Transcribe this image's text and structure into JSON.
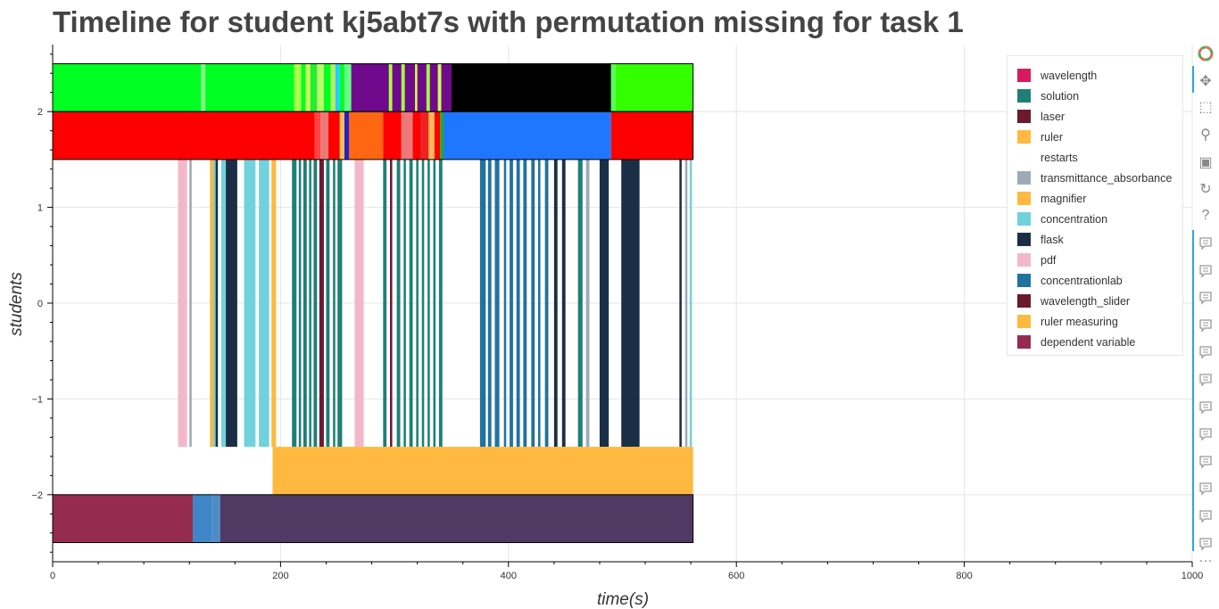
{
  "page": {
    "title": "Timeline for student kj5abt7s with permutation missing for task 1"
  },
  "chart_data": {
    "type": "timeline",
    "title": "Timeline for student kj5abt7s with permutation missing for task 1",
    "xlabel": "time(s)",
    "ylabel": "students",
    "xlim": [
      0,
      1000
    ],
    "ylim": [
      -2.7,
      2.7
    ],
    "xticks": [
      0,
      200,
      400,
      600,
      800,
      1000
    ],
    "yticks": [
      -2,
      -1,
      0,
      1,
      2
    ],
    "ytick_labels": [
      "−2",
      "−1",
      "0",
      "1",
      "2"
    ],
    "grid": true,
    "legend_position": "top-right",
    "legend": [
      {
        "label": "wavelength",
        "color": "#d81b60"
      },
      {
        "label": "solution",
        "color": "#1e7f77"
      },
      {
        "label": "laser",
        "color": "#6b1a30"
      },
      {
        "label": "ruler",
        "color": "#ffb940"
      },
      {
        "label": "restarts",
        "color": "#ffffff"
      },
      {
        "label": "transmittance_absorbance",
        "color": "#9eaab8"
      },
      {
        "label": "magnifier",
        "color": "#ffb940"
      },
      {
        "label": "concentration",
        "color": "#6fd2dc"
      },
      {
        "label": "flask",
        "color": "#1a2f45"
      },
      {
        "label": "pdf",
        "color": "#f2b8c9"
      },
      {
        "label": "concentrationlab",
        "color": "#21729f"
      },
      {
        "label": "wavelength_slider",
        "color": "#6b1a30"
      },
      {
        "label": "ruler measuring",
        "color": "#ffb940"
      },
      {
        "label": "dependent variable",
        "color": "#962b50"
      }
    ],
    "rows": [
      {
        "y0": 2.0,
        "y1": 2.5,
        "segments": [
          [
            0,
            130,
            "#00ff22"
          ],
          [
            130,
            134,
            "#7dff7d"
          ],
          [
            134,
            212,
            "#00ff22"
          ],
          [
            212,
            218,
            "#aaff44"
          ],
          [
            218,
            222,
            "#00ff22"
          ],
          [
            222,
            226,
            "#ccff55"
          ],
          [
            226,
            232,
            "#22ee33"
          ],
          [
            232,
            238,
            "#bbff66"
          ],
          [
            238,
            244,
            "#00ff22"
          ],
          [
            244,
            248,
            "#bbee55"
          ],
          [
            248,
            252,
            "#22ccff"
          ],
          [
            252,
            256,
            "#00ff22"
          ],
          [
            256,
            262,
            "#66ff88"
          ],
          [
            262,
            350,
            "#700a8c"
          ],
          [
            295,
            298,
            "#aaff44"
          ],
          [
            306,
            309,
            "#aaff44"
          ],
          [
            318,
            320,
            "#ddff44"
          ],
          [
            328,
            331,
            "#aaff44"
          ],
          [
            338,
            341,
            "#ccff55"
          ],
          [
            350,
            490,
            "#000000"
          ],
          [
            490,
            494,
            "#55ff55"
          ],
          [
            494,
            562,
            "#33ff00"
          ]
        ]
      },
      {
        "y0": 1.5,
        "y1": 2.0,
        "segments": [
          [
            0,
            230,
            "#ff0000"
          ],
          [
            230,
            235,
            "#ff4444"
          ],
          [
            235,
            242,
            "#ee7777"
          ],
          [
            242,
            252,
            "#ff0000"
          ],
          [
            252,
            256,
            "#ffbb55"
          ],
          [
            256,
            260,
            "#2222cc"
          ],
          [
            260,
            290,
            "#ff6611"
          ],
          [
            290,
            306,
            "#ff0000"
          ],
          [
            306,
            316,
            "#ee7777"
          ],
          [
            316,
            323,
            "#ff0000"
          ],
          [
            323,
            330,
            "#ee2222"
          ],
          [
            330,
            335,
            "#ffbb55"
          ],
          [
            335,
            340,
            "#ff0000"
          ],
          [
            340,
            343,
            "#22aa22"
          ],
          [
            343,
            490,
            "#1f77ff"
          ],
          [
            490,
            562,
            "#ff0000"
          ]
        ]
      },
      {
        "y0": -1.5,
        "y1": 1.5,
        "segments": [
          [
            110,
            118,
            "#f2b8c9"
          ],
          [
            120,
            122,
            "#9eaab8"
          ],
          [
            138,
            141,
            "#ffb940"
          ],
          [
            141,
            143,
            "#6fd2dc"
          ],
          [
            143,
            145,
            "#1a2f45"
          ],
          [
            148,
            152,
            "#6fd2dc"
          ],
          [
            152,
            162,
            "#1a2f45"
          ],
          [
            168,
            178,
            "#6fd2dc"
          ],
          [
            181,
            190,
            "#6fd2dc"
          ],
          [
            192,
            196,
            "#ffb940"
          ],
          [
            210,
            214,
            "#1e7f77"
          ],
          [
            216,
            218,
            "#1e7f77"
          ],
          [
            220,
            223,
            "#1e7f77"
          ],
          [
            225,
            227,
            "#1e7f77"
          ],
          [
            229,
            232,
            "#1e7f77"
          ],
          [
            234,
            238,
            "#6b1a30"
          ],
          [
            240,
            243,
            "#1e7f77"
          ],
          [
            246,
            248,
            "#1e7f77"
          ],
          [
            250,
            254,
            "#1e7f77"
          ],
          [
            265,
            273,
            "#f2b8c9"
          ],
          [
            290,
            293,
            "#1e7f77"
          ],
          [
            296,
            298,
            "#6b1a30"
          ],
          [
            302,
            305,
            "#1e7f77"
          ],
          [
            308,
            310,
            "#1e7f77"
          ],
          [
            313,
            316,
            "#1e7f77"
          ],
          [
            319,
            321,
            "#1e7f77"
          ],
          [
            324,
            326,
            "#1e7f77"
          ],
          [
            329,
            331,
            "#1e7f77"
          ],
          [
            334,
            336,
            "#1e7f77"
          ],
          [
            339,
            342,
            "#1e7f77"
          ],
          [
            375,
            380,
            "#21729f"
          ],
          [
            382,
            385,
            "#21729f"
          ],
          [
            388,
            392,
            "#21729f"
          ],
          [
            396,
            398,
            "#21729f"
          ],
          [
            401,
            404,
            "#21729f"
          ],
          [
            407,
            410,
            "#21729f"
          ],
          [
            413,
            416,
            "#21729f"
          ],
          [
            420,
            423,
            "#21729f"
          ],
          [
            426,
            428,
            "#21729f"
          ],
          [
            432,
            435,
            "#21729f"
          ],
          [
            440,
            443,
            "#1a2f45"
          ],
          [
            447,
            450,
            "#1a2f45"
          ],
          [
            461,
            465,
            "#1e7f77"
          ],
          [
            468,
            471,
            "#9eaab8"
          ],
          [
            480,
            488,
            "#1a2f45"
          ],
          [
            499,
            515,
            "#1a2f45"
          ],
          [
            550,
            552,
            "#1a2f45"
          ],
          [
            555,
            557,
            "#9eaab8"
          ],
          [
            559,
            561,
            "#6fd2dc"
          ]
        ]
      },
      {
        "y0": -2.0,
        "y1": -1.5,
        "segments": [
          [
            193,
            562,
            "#ffb940"
          ]
        ]
      },
      {
        "y0": -2.5,
        "y1": -2.0,
        "segments": [
          [
            0,
            123,
            "#962b50"
          ],
          [
            123,
            140,
            "#3e86c8"
          ],
          [
            140,
            147,
            "#4e8cc6"
          ],
          [
            147,
            562,
            "#503a64"
          ]
        ]
      }
    ]
  }
}
